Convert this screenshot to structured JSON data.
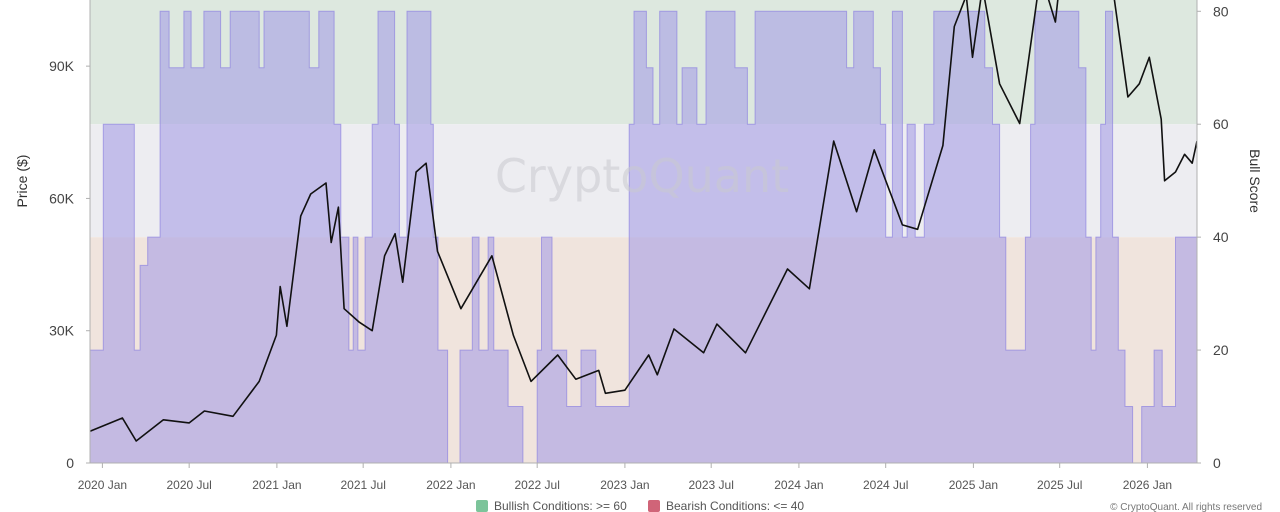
{
  "chart_data": {
    "type": "line",
    "watermark": "CryptoQuant",
    "copyright": "© CryptoQuant. All rights reserved",
    "left_axis": {
      "title": "Price ($)",
      "ticks": [
        {
          "label": "0",
          "value": 0
        },
        {
          "label": "30K",
          "value": 30000
        },
        {
          "label": "60K",
          "value": 60000
        },
        {
          "label": "90K",
          "value": 90000
        }
      ],
      "range": [
        0,
        105000
      ]
    },
    "right_axis": {
      "title": "Bull Score",
      "ticks": [
        {
          "label": "0",
          "value": 0
        },
        {
          "label": "20",
          "value": 20
        },
        {
          "label": "40",
          "value": 40
        },
        {
          "label": "60",
          "value": 60
        },
        {
          "label": "80",
          "value": 80
        }
      ],
      "range": [
        0,
        82
      ]
    },
    "x_axis": {
      "range": [
        "2019-12-06",
        "2026-04-15"
      ],
      "ticks": [
        {
          "label": "2020 Jan",
          "date": "2020-01-01"
        },
        {
          "label": "2020 Jul",
          "date": "2020-07-01"
        },
        {
          "label": "2021 Jan",
          "date": "2021-01-01"
        },
        {
          "label": "2021 Jul",
          "date": "2021-07-01"
        },
        {
          "label": "2022 Jan",
          "date": "2022-01-01"
        },
        {
          "label": "2022 Jul",
          "date": "2022-07-01"
        },
        {
          "label": "2023 Jan",
          "date": "2023-01-01"
        },
        {
          "label": "2023 Jul",
          "date": "2023-07-01"
        },
        {
          "label": "2024 Jan",
          "date": "2024-01-01"
        },
        {
          "label": "2024 Jul",
          "date": "2024-07-01"
        },
        {
          "label": "2025 Jan",
          "date": "2025-01-01"
        },
        {
          "label": "2025 Jul",
          "date": "2025-07-01"
        },
        {
          "label": "2026 Jan",
          "date": "2026-01-01"
        }
      ]
    },
    "zones": [
      {
        "name": "bullish",
        "from": 60,
        "to": 82,
        "color": "#dde8df"
      },
      {
        "name": "neutral",
        "from": 40,
        "to": 60,
        "color": "#ededf1"
      },
      {
        "name": "bearish",
        "from": 0,
        "to": 40,
        "color": "#f0e4dd"
      }
    ],
    "legend": [
      {
        "label": "Bullish Conditions: >= 60",
        "color": "#7cc49a"
      },
      {
        "label": "Bearish Conditions: <= 40",
        "color": "#d06478"
      }
    ],
    "series": [
      {
        "id": "bull_score",
        "axis": "right",
        "style": "step-area",
        "color": "#a79ee6",
        "points": [
          [
            "2019-12-06",
            20
          ],
          [
            "2020-01-03",
            60
          ],
          [
            "2020-03-08",
            20
          ],
          [
            "2020-03-20",
            35
          ],
          [
            "2020-04-05",
            40
          ],
          [
            "2020-05-01",
            80
          ],
          [
            "2020-05-20",
            70
          ],
          [
            "2020-06-20",
            80
          ],
          [
            "2020-07-05",
            70
          ],
          [
            "2020-08-01",
            80
          ],
          [
            "2020-09-05",
            70
          ],
          [
            "2020-09-25",
            80
          ],
          [
            "2020-10-20",
            80
          ],
          [
            "2020-11-25",
            70
          ],
          [
            "2020-12-05",
            80
          ],
          [
            "2021-03-10",
            70
          ],
          [
            "2021-03-30",
            80
          ],
          [
            "2021-05-01",
            60
          ],
          [
            "2021-05-15",
            40
          ],
          [
            "2021-06-01",
            20
          ],
          [
            "2021-06-10",
            40
          ],
          [
            "2021-06-20",
            20
          ],
          [
            "2021-07-05",
            40
          ],
          [
            "2021-07-20",
            60
          ],
          [
            "2021-08-01",
            80
          ],
          [
            "2021-09-05",
            60
          ],
          [
            "2021-09-15",
            40
          ],
          [
            "2021-10-01",
            80
          ],
          [
            "2021-11-20",
            60
          ],
          [
            "2021-11-25",
            40
          ],
          [
            "2021-12-05",
            20
          ],
          [
            "2021-12-25",
            0
          ],
          [
            "2022-01-20",
            20
          ],
          [
            "2022-02-15",
            40
          ],
          [
            "2022-03-01",
            20
          ],
          [
            "2022-03-20",
            40
          ],
          [
            "2022-04-01",
            20
          ],
          [
            "2022-05-01",
            10
          ],
          [
            "2022-06-01",
            0
          ],
          [
            "2022-07-01",
            20
          ],
          [
            "2022-07-10",
            40
          ],
          [
            "2022-08-01",
            20
          ],
          [
            "2022-09-01",
            10
          ],
          [
            "2022-10-01",
            20
          ],
          [
            "2022-11-01",
            10
          ],
          [
            "2023-01-10",
            60
          ],
          [
            "2023-01-20",
            80
          ],
          [
            "2023-02-15",
            70
          ],
          [
            "2023-03-01",
            60
          ],
          [
            "2023-03-15",
            80
          ],
          [
            "2023-04-20",
            60
          ],
          [
            "2023-05-01",
            70
          ],
          [
            "2023-06-01",
            60
          ],
          [
            "2023-06-20",
            80
          ],
          [
            "2023-08-20",
            70
          ],
          [
            "2023-09-15",
            60
          ],
          [
            "2023-10-01",
            80
          ],
          [
            "2024-04-10",
            70
          ],
          [
            "2024-04-25",
            80
          ],
          [
            "2024-06-05",
            70
          ],
          [
            "2024-06-20",
            60
          ],
          [
            "2024-07-01",
            40
          ],
          [
            "2024-07-15",
            80
          ],
          [
            "2024-08-05",
            40
          ],
          [
            "2024-08-15",
            60
          ],
          [
            "2024-09-01",
            40
          ],
          [
            "2024-09-20",
            60
          ],
          [
            "2024-10-10",
            80
          ],
          [
            "2025-01-25",
            70
          ],
          [
            "2025-02-10",
            60
          ],
          [
            "2025-02-25",
            40
          ],
          [
            "2025-03-10",
            20
          ],
          [
            "2025-04-01",
            20
          ],
          [
            "2025-04-20",
            40
          ],
          [
            "2025-05-01",
            60
          ],
          [
            "2025-05-10",
            80
          ],
          [
            "2025-08-10",
            70
          ],
          [
            "2025-08-25",
            40
          ],
          [
            "2025-09-05",
            20
          ],
          [
            "2025-09-15",
            40
          ],
          [
            "2025-09-25",
            60
          ],
          [
            "2025-10-05",
            80
          ],
          [
            "2025-10-20",
            40
          ],
          [
            "2025-11-01",
            20
          ],
          [
            "2025-11-15",
            10
          ],
          [
            "2025-12-01",
            0
          ],
          [
            "2025-12-20",
            10
          ],
          [
            "2026-01-15",
            20
          ],
          [
            "2026-02-01",
            10
          ],
          [
            "2026-03-01",
            40
          ],
          [
            "2026-04-15",
            40
          ]
        ]
      },
      {
        "id": "price",
        "axis": "left",
        "style": "line",
        "color": "#111111",
        "points": [
          [
            "2019-12-06",
            7200
          ],
          [
            "2020-02-12",
            10200
          ],
          [
            "2020-03-12",
            5000
          ],
          [
            "2020-05-08",
            9800
          ],
          [
            "2020-07-01",
            9100
          ],
          [
            "2020-08-02",
            11800
          ],
          [
            "2020-10-01",
            10600
          ],
          [
            "2020-11-25",
            18500
          ],
          [
            "2020-12-31",
            29000
          ],
          [
            "2021-01-08",
            40000
          ],
          [
            "2021-01-22",
            31000
          ],
          [
            "2021-02-20",
            56000
          ],
          [
            "2021-03-13",
            61000
          ],
          [
            "2021-04-14",
            63500
          ],
          [
            "2021-04-25",
            50000
          ],
          [
            "2021-05-10",
            58000
          ],
          [
            "2021-05-22",
            35000
          ],
          [
            "2021-06-22",
            32000
          ],
          [
            "2021-07-20",
            30000
          ],
          [
            "2021-08-15",
            47000
          ],
          [
            "2021-09-06",
            52000
          ],
          [
            "2021-09-22",
            41000
          ],
          [
            "2021-10-20",
            66000
          ],
          [
            "2021-11-10",
            68000
          ],
          [
            "2021-12-04",
            48000
          ],
          [
            "2022-01-22",
            35000
          ],
          [
            "2022-03-28",
            47000
          ],
          [
            "2022-05-12",
            29000
          ],
          [
            "2022-06-18",
            18500
          ],
          [
            "2022-08-13",
            24500
          ],
          [
            "2022-09-20",
            19000
          ],
          [
            "2022-11-07",
            21000
          ],
          [
            "2022-11-21",
            15800
          ],
          [
            "2023-01-01",
            16500
          ],
          [
            "2023-02-20",
            24500
          ],
          [
            "2023-03-10",
            20000
          ],
          [
            "2023-04-14",
            30400
          ],
          [
            "2023-06-15",
            25000
          ],
          [
            "2023-07-13",
            31500
          ],
          [
            "2023-09-11",
            25000
          ],
          [
            "2023-10-25",
            34500
          ],
          [
            "2023-12-08",
            44000
          ],
          [
            "2024-01-23",
            39500
          ],
          [
            "2024-03-14",
            73000
          ],
          [
            "2024-05-01",
            57000
          ],
          [
            "2024-06-07",
            71000
          ],
          [
            "2024-08-05",
            54000
          ],
          [
            "2024-09-06",
            53000
          ],
          [
            "2024-10-29",
            72000
          ],
          [
            "2024-11-22",
            99000
          ],
          [
            "2024-12-17",
            106000
          ],
          [
            "2024-12-30",
            92000
          ],
          [
            "2025-01-20",
            108000
          ],
          [
            "2025-02-25",
            86000
          ],
          [
            "2025-04-08",
            77000
          ],
          [
            "2025-05-22",
            111000
          ],
          [
            "2025-06-22",
            100000
          ],
          [
            "2025-07-14",
            122000
          ],
          [
            "2025-08-14",
            123000
          ],
          [
            "2025-09-01",
            108000
          ],
          [
            "2025-10-06",
            126000
          ],
          [
            "2025-10-20",
            108000
          ],
          [
            "2025-11-21",
            83000
          ],
          [
            "2025-12-15",
            86000
          ],
          [
            "2026-01-05",
            92000
          ],
          [
            "2026-01-30",
            78000
          ],
          [
            "2026-02-06",
            64000
          ],
          [
            "2026-03-01",
            66000
          ],
          [
            "2026-03-20",
            70000
          ],
          [
            "2026-04-05",
            68000
          ],
          [
            "2026-04-15",
            73000
          ]
        ]
      }
    ]
  }
}
